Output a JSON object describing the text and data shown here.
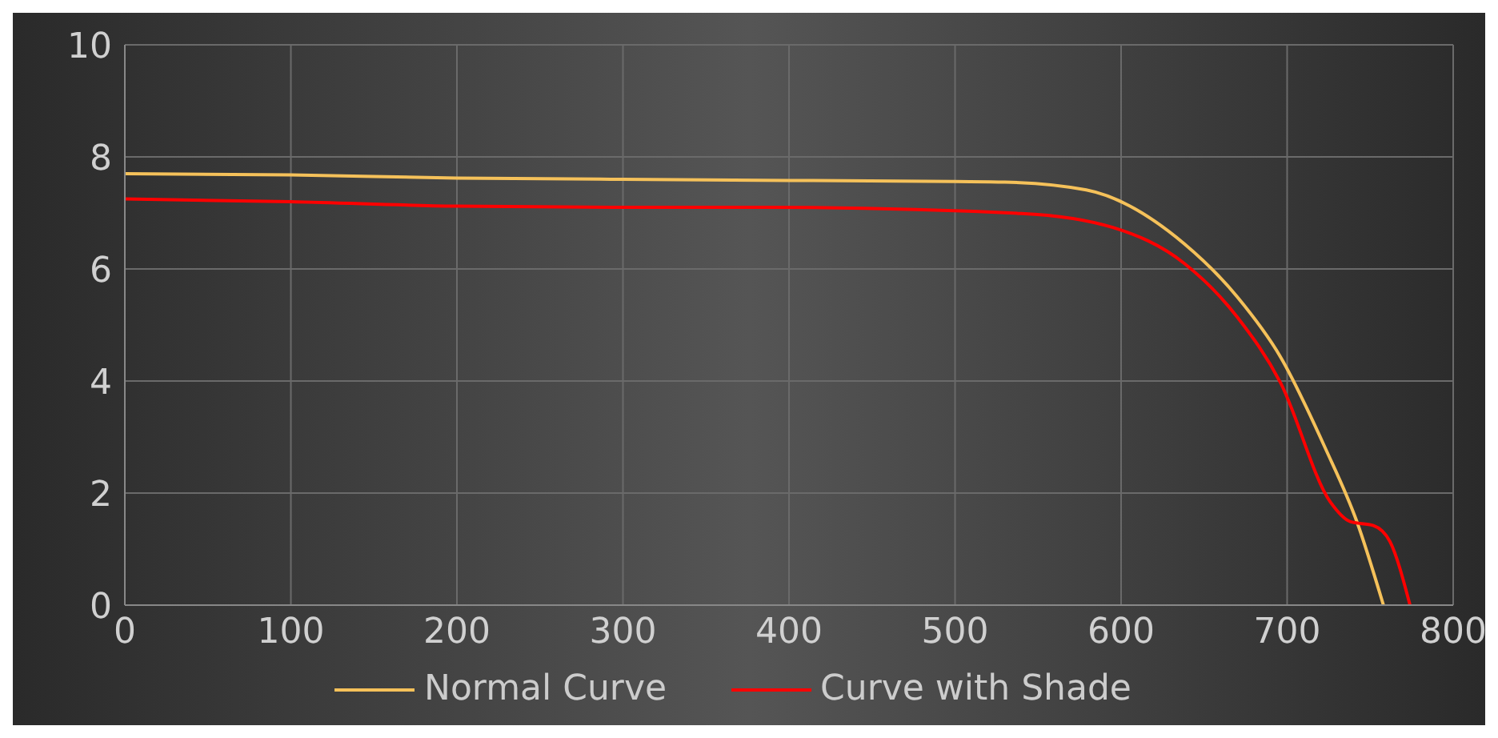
{
  "chart_data": {
    "type": "line",
    "xlim": [
      0,
      800
    ],
    "xticks": [
      0,
      100,
      200,
      300,
      400,
      500,
      600,
      700,
      800
    ],
    "ylim": [
      0,
      10
    ],
    "yticks": [
      0,
      2,
      4,
      6,
      8,
      10
    ],
    "grid": true,
    "legend": "bottom",
    "marker": "none",
    "line_style": "solid",
    "series": [
      {
        "name": "Normal Curve",
        "color": "#f5c15a",
        "x": [
          0,
          100,
          200,
          300,
          400,
          500,
          530,
          579,
          638,
          670,
          696,
          723,
          742,
          758
        ],
        "values": [
          7.7,
          7.68,
          7.62,
          7.6,
          7.58,
          7.56,
          7.55,
          7.41,
          6.45,
          5.5,
          4.43,
          2.8,
          1.49,
          0
        ]
      },
      {
        "name": "Curve with Shade",
        "color": "#ff0000",
        "x": [
          0,
          100,
          200,
          300,
          384,
          540,
          595,
          638,
          670,
          696,
          726,
          738,
          752,
          762,
          774
        ],
        "values": [
          7.25,
          7.2,
          7.12,
          7.1,
          7.1,
          6.99,
          6.74,
          6.1,
          5.14,
          3.97,
          1.84,
          1.49,
          1.42,
          1.13,
          0
        ]
      }
    ]
  }
}
